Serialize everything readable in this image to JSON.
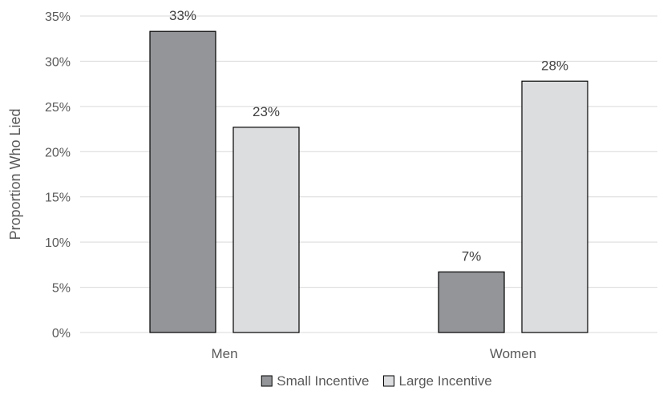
{
  "chart_data": {
    "type": "bar",
    "categories": [
      "Men",
      "Women"
    ],
    "series": [
      {
        "name": "Small Incentive",
        "values": [
          33.3,
          6.7
        ],
        "labels": [
          "33%",
          "7%"
        ],
        "color": "#939598"
      },
      {
        "name": "Large Incentive",
        "values": [
          22.7,
          27.8
        ],
        "labels": [
          "23%",
          "28%"
        ],
        "color": "#dcdddf"
      }
    ],
    "title": "",
    "xlabel": "",
    "ylabel": "Proportion Who Lied",
    "ylim": [
      0,
      35
    ],
    "yticks": [
      0,
      5,
      10,
      15,
      20,
      25,
      30,
      35
    ],
    "ytick_labels": [
      "0%",
      "5%",
      "10%",
      "15%",
      "20%",
      "25%",
      "30%",
      "35%"
    ],
    "grid": true,
    "legend": "bottom",
    "colors": {
      "gridline": "#d9d9d9",
      "bar_edge": "#000000",
      "text": "#595959"
    }
  }
}
